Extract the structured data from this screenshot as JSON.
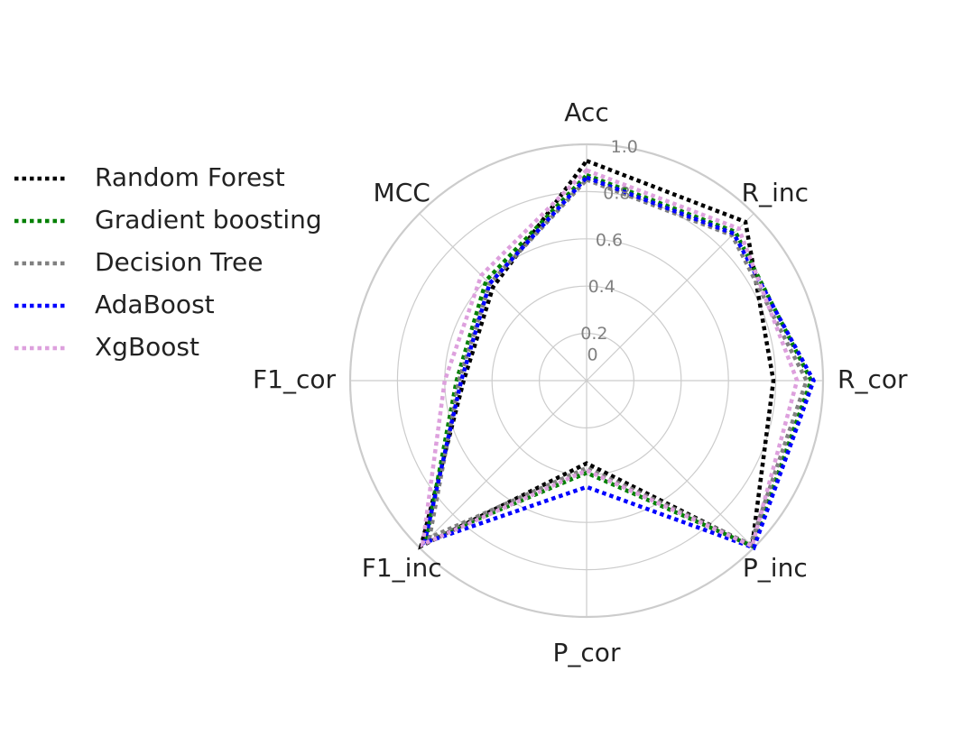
{
  "chart_data": {
    "type": "radar",
    "axes": [
      "Acc",
      "R_inc",
      "R_cor",
      "P_inc",
      "P_cor",
      "F1_inc",
      "F1_cor",
      "MCC"
    ],
    "rlim": [
      0,
      1.0
    ],
    "rticks": [
      0,
      0.2,
      0.4,
      0.6,
      0.8,
      1.0
    ],
    "rtick_labels": [
      "0",
      "0.2",
      "0.4",
      "0.6",
      "0.8",
      "1.0"
    ],
    "grid": true,
    "legend": "left",
    "series": [
      {
        "name": "Random Forest",
        "color": "#000000",
        "values": [
          0.93,
          0.95,
          0.79,
          0.99,
          0.35,
          0.99,
          0.52,
          0.56
        ]
      },
      {
        "name": "Gradient boosting",
        "color": "#008000",
        "values": [
          0.87,
          0.89,
          0.95,
          0.99,
          0.39,
          0.96,
          0.55,
          0.6
        ]
      },
      {
        "name": "Decision Tree",
        "color": "#808080",
        "values": [
          0.85,
          0.87,
          0.93,
          0.98,
          0.37,
          0.94,
          0.54,
          0.58
        ]
      },
      {
        "name": "AdaBoost",
        "color": "#0000ff",
        "values": [
          0.86,
          0.88,
          0.96,
          1.0,
          0.45,
          0.97,
          0.53,
          0.58
        ]
      },
      {
        "name": "XgBoost",
        "color": "#dda0dd",
        "values": [
          0.89,
          0.91,
          0.89,
          0.99,
          0.38,
          0.98,
          0.6,
          0.63
        ]
      }
    ]
  }
}
